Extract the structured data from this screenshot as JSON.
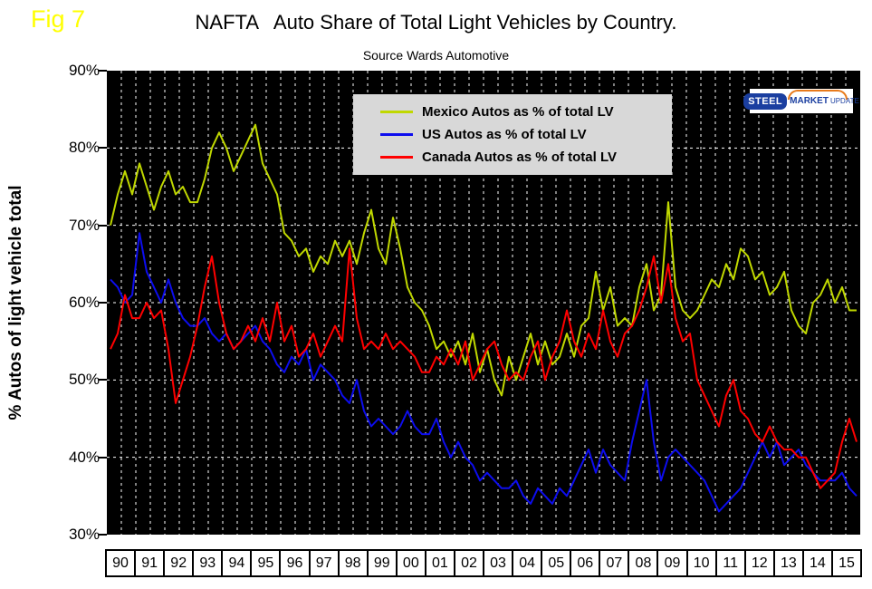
{
  "fig_label": "Fig 7",
  "logo": {
    "steel": "STEEL",
    "market": "MARKET",
    "update": "UPDATE"
  },
  "chart_data": {
    "type": "line",
    "title": "NAFTA   Auto Share of Total Light Vehicles by Country.",
    "subtitle": "Source Wards Automotive",
    "ylabel": "% Autos of light vehicle total",
    "ylim": [
      30,
      90
    ],
    "grid": "dashed-white-on-black",
    "plot_background": "#000000",
    "legend_position": "top-center",
    "legend_background": "#d8d8d8",
    "points_per_year": 4,
    "x_years": [
      "90",
      "91",
      "92",
      "93",
      "94",
      "95",
      "96",
      "97",
      "98",
      "99",
      "00",
      "01",
      "02",
      "03",
      "04",
      "05",
      "06",
      "07",
      "08",
      "09",
      "10",
      "11",
      "12",
      "13",
      "14",
      "15"
    ],
    "y_ticks": [
      {
        "value": 90,
        "label": "90%"
      },
      {
        "value": 80,
        "label": "80%"
      },
      {
        "value": 70,
        "label": "70%"
      },
      {
        "value": 60,
        "label": "60%"
      },
      {
        "value": 50,
        "label": "50%"
      },
      {
        "value": 40,
        "label": "40%"
      },
      {
        "value": 30,
        "label": "30%"
      }
    ],
    "grid_y": [
      40,
      50,
      60,
      70,
      80
    ],
    "series": [
      {
        "id": "mexico",
        "name": "Mexico Autos as % of total LV",
        "color": "#c0d800",
        "values": [
          70,
          74,
          77,
          74,
          78,
          75,
          72,
          75,
          77,
          74,
          75,
          73,
          73,
          76,
          80,
          82,
          80,
          77,
          79,
          81,
          83,
          78,
          76,
          74,
          69,
          68,
          66,
          67,
          64,
          66,
          65,
          68,
          66,
          68,
          65,
          69,
          72,
          67,
          65,
          71,
          67,
          62,
          60,
          59,
          57,
          54,
          55,
          53,
          55,
          52,
          56,
          51,
          54,
          50,
          48,
          53,
          50,
          53,
          56,
          52,
          55,
          52,
          53,
          56,
          53,
          57,
          58,
          64,
          59,
          62,
          57,
          58,
          57,
          62,
          65,
          59,
          61,
          73,
          62,
          59,
          58,
          59,
          61,
          63,
          62,
          65,
          63,
          67,
          66,
          63,
          64,
          61,
          62,
          64,
          59,
          57,
          56,
          60,
          61,
          63,
          60,
          62,
          59,
          59
        ]
      },
      {
        "id": "us",
        "name": "US Autos as % of total LV",
        "color": "#0d0dee",
        "values": [
          63,
          62,
          60,
          61,
          69,
          64,
          62,
          60,
          63,
          60,
          58,
          57,
          57,
          58,
          56,
          55,
          56,
          54,
          55,
          56,
          57,
          55,
          54,
          52,
          51,
          53,
          52,
          54,
          50,
          52,
          51,
          50,
          48,
          47,
          50,
          46,
          44,
          45,
          44,
          43,
          44,
          46,
          44,
          43,
          43,
          45,
          42,
          40,
          42,
          40,
          39,
          37,
          38,
          37,
          36,
          36,
          37,
          35,
          34,
          36,
          35,
          34,
          36,
          35,
          37,
          39,
          41,
          38,
          41,
          39,
          38,
          37,
          42,
          46,
          50,
          42,
          37,
          40,
          41,
          40,
          39,
          38,
          37,
          35,
          33,
          34,
          35,
          36,
          38,
          40,
          42,
          40,
          42,
          39,
          40,
          41,
          39,
          38,
          37,
          37,
          37,
          38,
          36,
          35
        ]
      },
      {
        "id": "canada",
        "name": "Canada Autos as % of total LV",
        "color": "#ff0000",
        "values": [
          54,
          56,
          61,
          58,
          58,
          60,
          58,
          59,
          54,
          47,
          50,
          53,
          57,
          62,
          66,
          60,
          56,
          54,
          55,
          57,
          55,
          58,
          55,
          60,
          55,
          57,
          53,
          54,
          56,
          53,
          55,
          57,
          55,
          67,
          58,
          54,
          55,
          54,
          56,
          54,
          55,
          54,
          53,
          51,
          51,
          53,
          52,
          54,
          52,
          55,
          50,
          52,
          54,
          55,
          52,
          50,
          51,
          50,
          53,
          55,
          50,
          53,
          55,
          59,
          55,
          53,
          56,
          54,
          59,
          55,
          53,
          56,
          57,
          59,
          62,
          66,
          60,
          65,
          58,
          55,
          56,
          50,
          48,
          46,
          44,
          48,
          50,
          46,
          45,
          43,
          42,
          44,
          42,
          41,
          41,
          40,
          40,
          38,
          36,
          37,
          38,
          42,
          45,
          42
        ]
      }
    ]
  }
}
